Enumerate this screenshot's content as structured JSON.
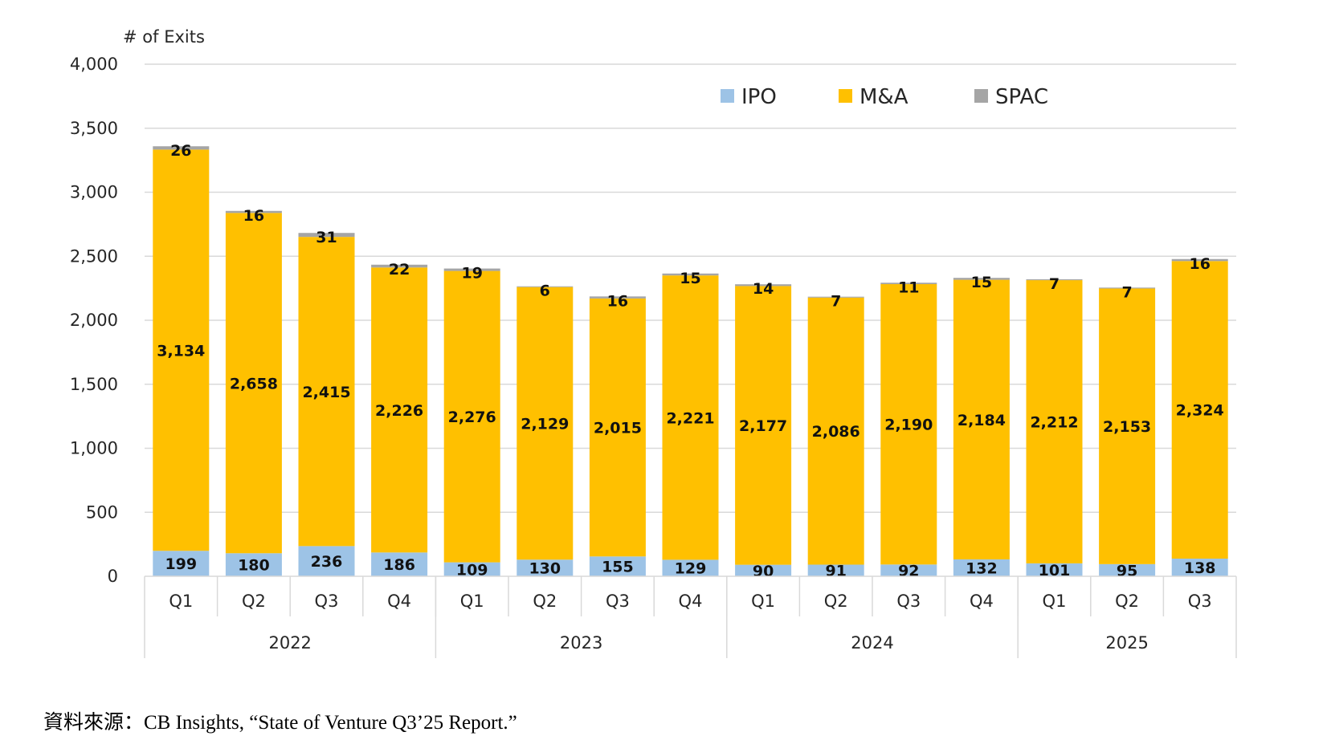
{
  "chart_data": {
    "type": "bar",
    "stacked": true,
    "title": "",
    "ylabel": "# of Exits",
    "xlabel": "",
    "ylim": [
      0,
      4000
    ],
    "yticks": [
      0,
      500,
      1000,
      1500,
      2000,
      2500,
      3000,
      3500,
      4000
    ],
    "ytick_labels": [
      "0",
      "500",
      "1,000",
      "1,500",
      "2,000",
      "2,500",
      "3,000",
      "3,500",
      "4,000"
    ],
    "grid": true,
    "legend_position": "top-right",
    "categories": [
      "Q1",
      "Q2",
      "Q3",
      "Q4",
      "Q1",
      "Q2",
      "Q3",
      "Q4",
      "Q1",
      "Q2",
      "Q3",
      "Q4",
      "Q1",
      "Q2",
      "Q3"
    ],
    "category_groups": [
      {
        "label": "2022",
        "count": 4
      },
      {
        "label": "2023",
        "count": 4
      },
      {
        "label": "2024",
        "count": 4
      },
      {
        "label": "2025",
        "count": 3
      }
    ],
    "series": [
      {
        "name": "IPO",
        "color": "#9DC3E6",
        "values": [
          199,
          180,
          236,
          186,
          109,
          130,
          155,
          129,
          90,
          91,
          92,
          132,
          101,
          95,
          138
        ],
        "labels": [
          "199",
          "180",
          "236",
          "186",
          "109",
          "130",
          "155",
          "129",
          "90",
          "91",
          "92",
          "132",
          "101",
          "95",
          "138"
        ]
      },
      {
        "name": "M&A",
        "color": "#FFC000",
        "values": [
          3134,
          2658,
          2415,
          2226,
          2276,
          2129,
          2015,
          2221,
          2177,
          2086,
          2190,
          2184,
          2212,
          2153,
          2324
        ],
        "labels": [
          "3,134",
          "2,658",
          "2,415",
          "2,226",
          "2,276",
          "2,129",
          "2,015",
          "2,221",
          "2,177",
          "2,086",
          "2,190",
          "2,184",
          "2,212",
          "2,153",
          "2,324"
        ]
      },
      {
        "name": "SPAC",
        "color": "#A5A5A5",
        "values": [
          26,
          16,
          31,
          22,
          19,
          6,
          16,
          15,
          14,
          7,
          11,
          15,
          7,
          7,
          16
        ],
        "labels": [
          "26",
          "16",
          "31",
          "22",
          "19",
          "6",
          "16",
          "15",
          "14",
          "7",
          "11",
          "15",
          "7",
          "7",
          "16"
        ]
      }
    ]
  },
  "source": "資料來源：CB Insights, “State of Venture Q3’25 Report.”"
}
